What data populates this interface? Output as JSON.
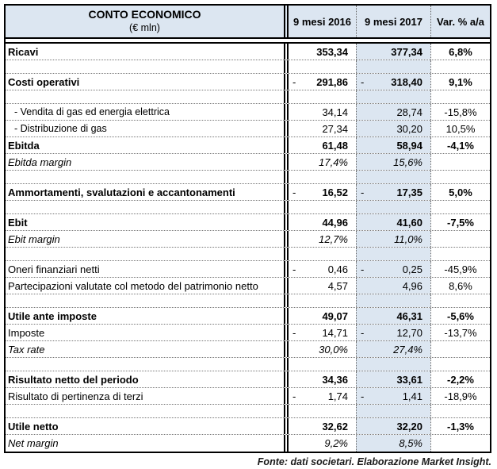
{
  "table": {
    "title": "CONTO ECONOMICO",
    "subtitle": "(€ mln)",
    "columns": [
      "9 mesi 2016",
      "9 mesi 2017",
      "Var. % a/a"
    ],
    "rows": [
      {
        "type": "bold",
        "label": "Ricavi",
        "m16": "",
        "v16": "353,34",
        "m17": "",
        "v17": "377,34",
        "var": "6,8%"
      },
      {
        "type": "empty",
        "label": "",
        "m16": "",
        "v16": "",
        "m17": "",
        "v17": "",
        "var": ""
      },
      {
        "type": "bold",
        "label": "Costi operativi",
        "m16": "-",
        "v16": "291,86",
        "m17": "-",
        "v17": "318,40",
        "var": "9,1%"
      },
      {
        "type": "empty",
        "label": "",
        "m16": "",
        "v16": "",
        "m17": "",
        "v17": "",
        "var": ""
      },
      {
        "type": "sub",
        "label": "- Vendita di gas ed energia elettrica",
        "m16": "",
        "v16": "34,14",
        "m17": "",
        "v17": "28,74",
        "var": "-15,8%"
      },
      {
        "type": "sub",
        "label": "- Distribuzione di gas",
        "m16": "",
        "v16": "27,34",
        "m17": "",
        "v17": "30,20",
        "var": "10,5%"
      },
      {
        "type": "bold",
        "label": "Ebitda",
        "m16": "",
        "v16": "61,48",
        "m17": "",
        "v17": "58,94",
        "var": "-4,1%"
      },
      {
        "type": "italic",
        "label": "Ebitda margin",
        "m16": "",
        "v16": "17,4%",
        "m17": "",
        "v17": "15,6%",
        "var": ""
      },
      {
        "type": "empty",
        "label": "",
        "m16": "",
        "v16": "",
        "m17": "",
        "v17": "",
        "var": ""
      },
      {
        "type": "bold",
        "label": "Ammortamenti, svalutazioni e accantonamenti",
        "m16": "-",
        "v16": "16,52",
        "m17": "-",
        "v17": "17,35",
        "var": "5,0%"
      },
      {
        "type": "empty",
        "label": "",
        "m16": "",
        "v16": "",
        "m17": "",
        "v17": "",
        "var": ""
      },
      {
        "type": "bold",
        "label": "Ebit",
        "m16": "",
        "v16": "44,96",
        "m17": "",
        "v17": "41,60",
        "var": "-7,5%"
      },
      {
        "type": "italic",
        "label": "Ebit margin",
        "m16": "",
        "v16": "12,7%",
        "m17": "",
        "v17": "11,0%",
        "var": ""
      },
      {
        "type": "empty",
        "label": "",
        "m16": "",
        "v16": "",
        "m17": "",
        "v17": "",
        "var": ""
      },
      {
        "type": "normal",
        "label": "Oneri finanziari netti",
        "m16": "-",
        "v16": "0,46",
        "m17": "-",
        "v17": "0,25",
        "var": "-45,9%"
      },
      {
        "type": "normal",
        "label": "Partecipazioni valutate col metodo del patrimonio netto",
        "m16": "",
        "v16": "4,57",
        "m17": "",
        "v17": "4,96",
        "var": "8,6%"
      },
      {
        "type": "empty",
        "label": "",
        "m16": "",
        "v16": "",
        "m17": "",
        "v17": "",
        "var": ""
      },
      {
        "type": "bold",
        "label": "Utile ante imposte",
        "m16": "",
        "v16": "49,07",
        "m17": "",
        "v17": "46,31",
        "var": "-5,6%"
      },
      {
        "type": "normal",
        "label": "Imposte",
        "m16": "-",
        "v16": "14,71",
        "m17": "-",
        "v17": "12,70",
        "var": "-13,7%"
      },
      {
        "type": "italic",
        "label": "Tax rate",
        "m16": "",
        "v16": "30,0%",
        "m17": "",
        "v17": "27,4%",
        "var": ""
      },
      {
        "type": "empty",
        "label": "",
        "m16": "",
        "v16": "",
        "m17": "",
        "v17": "",
        "var": ""
      },
      {
        "type": "bold",
        "label": "Risultato netto del periodo",
        "m16": "",
        "v16": "34,36",
        "m17": "",
        "v17": "33,61",
        "var": "-2,2%"
      },
      {
        "type": "normal",
        "label": "Risultato di pertinenza di terzi",
        "m16": "-",
        "v16": "1,74",
        "m17": "-",
        "v17": "1,41",
        "var": "-18,9%"
      },
      {
        "type": "empty",
        "label": "",
        "m16": "",
        "v16": "",
        "m17": "",
        "v17": "",
        "var": ""
      },
      {
        "type": "bold",
        "label": "Utile netto",
        "m16": "",
        "v16": "32,62",
        "m17": "",
        "v17": "32,20",
        "var": "-1,3%"
      },
      {
        "type": "italic",
        "label": "Net margin",
        "m16": "",
        "v16": "9,2%",
        "m17": "",
        "v17": "8,5%",
        "var": ""
      }
    ]
  },
  "footer": {
    "source_note": "Fonte: dati societari. Elaborazione Market Insight."
  },
  "colors": {
    "header_bg": "#dce6f1",
    "highlight_column_bg": "#dce6f1",
    "border": "#000000"
  }
}
